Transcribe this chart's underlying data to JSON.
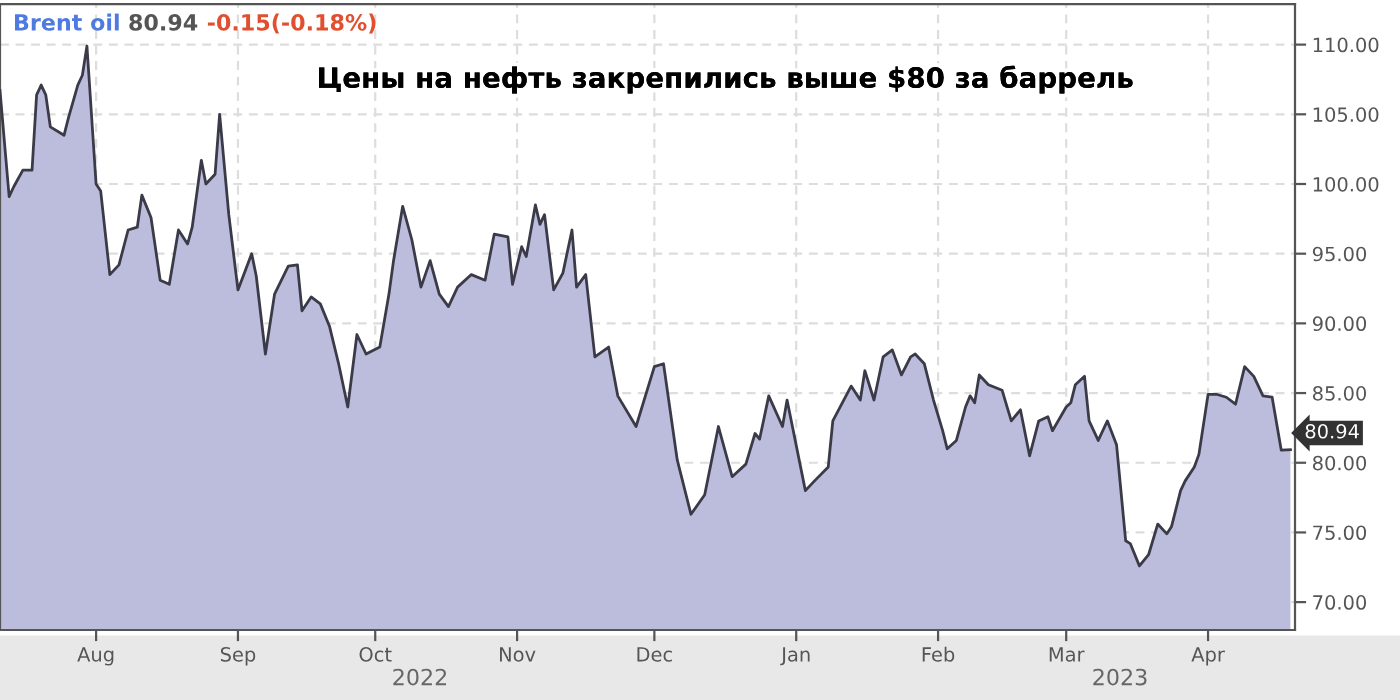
{
  "chart_data": {
    "type": "area",
    "title": "Цены на нефть закрепились выше $80 за баррель",
    "annotations": [
      "Brent oil",
      "80.94",
      "-0.15(-0.18%)",
      {
        "text": "80.94",
        "x": "2023-04-19",
        "y": 80.94
      },
      "2022",
      "2023"
    ],
    "x": [
      "2022-07-11",
      "2022-07-13",
      "2022-07-14",
      "2022-07-16",
      "2022-07-18",
      "2022-07-19",
      "2022-07-20",
      "2022-07-21",
      "2022-07-22",
      "2022-07-25",
      "2022-07-26",
      "2022-07-28",
      "2022-07-29",
      "2022-07-30",
      "2022-08-01",
      "2022-08-02",
      "2022-08-04",
      "2022-08-06",
      "2022-08-08",
      "2022-08-10",
      "2022-08-11",
      "2022-08-13",
      "2022-08-15",
      "2022-08-17",
      "2022-08-19",
      "2022-08-21",
      "2022-08-22",
      "2022-08-24",
      "2022-08-25",
      "2022-08-27",
      "2022-08-28",
      "2022-08-30",
      "2022-09-01",
      "2022-09-04",
      "2022-09-05",
      "2022-09-07",
      "2022-09-09",
      "2022-09-12",
      "2022-09-14",
      "2022-09-15",
      "2022-09-17",
      "2022-09-19",
      "2022-09-21",
      "2022-09-23",
      "2022-09-25",
      "2022-09-27",
      "2022-09-29",
      "2022-10-02",
      "2022-10-04",
      "2022-10-05",
      "2022-10-07",
      "2022-10-09",
      "2022-10-11",
      "2022-10-13",
      "2022-10-15",
      "2022-10-17",
      "2022-10-19",
      "2022-10-22",
      "2022-10-25",
      "2022-10-27",
      "2022-10-30",
      "2022-10-31",
      "2022-11-02",
      "2022-11-03",
      "2022-11-05",
      "2022-11-06",
      "2022-11-07",
      "2022-11-09",
      "2022-11-11",
      "2022-11-13",
      "2022-11-14",
      "2022-11-16",
      "2022-11-18",
      "2022-11-21",
      "2022-11-23",
      "2022-11-27",
      "2022-12-01",
      "2022-12-03",
      "2022-12-06",
      "2022-12-09",
      "2022-12-12",
      "2022-12-15",
      "2022-12-18",
      "2022-12-21",
      "2022-12-23",
      "2022-12-24",
      "2022-12-26",
      "2022-12-29",
      "2022-12-30",
      "2023-01-03",
      "2023-01-05",
      "2023-01-08",
      "2023-01-09",
      "2023-01-13",
      "2023-01-15",
      "2023-01-16",
      "2023-01-18",
      "2023-01-20",
      "2023-01-22",
      "2023-01-24",
      "2023-01-26",
      "2023-01-27",
      "2023-01-29",
      "2023-01-31",
      "2023-02-02",
      "2023-02-03",
      "2023-02-05",
      "2023-02-07",
      "2023-02-08",
      "2023-02-09",
      "2023-02-10",
      "2023-02-12",
      "2023-02-15",
      "2023-02-17",
      "2023-02-19",
      "2023-02-21",
      "2023-02-23",
      "2023-02-25",
      "2023-02-26",
      "2023-03-01",
      "2023-03-02",
      "2023-03-03",
      "2023-03-05",
      "2023-03-06",
      "2023-03-08",
      "2023-03-10",
      "2023-03-12",
      "2023-03-14",
      "2023-03-15",
      "2023-03-17",
      "2023-03-19",
      "2023-03-21",
      "2023-03-23",
      "2023-03-24",
      "2023-03-26",
      "2023-03-27",
      "2023-03-29",
      "2023-03-30",
      "2023-04-01",
      "2023-04-03",
      "2023-04-05",
      "2023-04-07",
      "2023-04-09",
      "2023-04-11",
      "2023-04-13",
      "2023-04-15",
      "2023-04-17",
      "2023-04-19"
    ],
    "series": [
      {
        "color": "#bcbcdc",
        "values": [
          106.7,
          99.1,
          99.8,
          101.0,
          101.0,
          106.4,
          107.1,
          106.4,
          104.1,
          103.5,
          104.8,
          107.1,
          107.8,
          109.9,
          100.0,
          99.5,
          93.5,
          94.2,
          96.7,
          96.9,
          99.2,
          97.6,
          93.1,
          92.8,
          96.7,
          95.7,
          96.9,
          101.7,
          100.0,
          100.7,
          105.0,
          97.8,
          92.4,
          95.0,
          93.4,
          87.8,
          92.1,
          94.1,
          94.2,
          90.9,
          91.9,
          91.4,
          89.8,
          87.1,
          84.0,
          89.2,
          87.8,
          88.3,
          92.1,
          94.5,
          98.4,
          96.0,
          92.6,
          94.5,
          92.1,
          91.2,
          92.6,
          93.5,
          93.1,
          96.4,
          96.2,
          92.8,
          95.5,
          94.8,
          98.5,
          97.1,
          97.8,
          92.4,
          93.6,
          96.7,
          92.6,
          93.5,
          87.6,
          88.3,
          84.8,
          82.6,
          86.9,
          87.1,
          80.2,
          76.3,
          77.7,
          82.6,
          79.0,
          79.9,
          82.1,
          81.7,
          84.8,
          82.6,
          84.5,
          78.0,
          78.7,
          79.7,
          83.0,
          85.5,
          84.5,
          86.6,
          84.5,
          87.6,
          88.1,
          86.3,
          87.6,
          87.8,
          87.1,
          84.5,
          82.3,
          81.0,
          81.6,
          84.0,
          84.8,
          84.3,
          86.3,
          85.6,
          85.2,
          83.0,
          83.8,
          80.5,
          83.0,
          83.3,
          82.3,
          84.0,
          84.3,
          85.6,
          86.2,
          83.0,
          81.6,
          83.0,
          81.3,
          74.4,
          74.2,
          72.6,
          73.4,
          75.6,
          74.9,
          75.4,
          78.0,
          78.7,
          79.7,
          80.6,
          84.9,
          84.9,
          84.7,
          84.2,
          86.9,
          86.2,
          84.8,
          84.7,
          80.9,
          80.94
        ]
      }
    ],
    "xlim": [
      "2022-07-11",
      "2023-04-20"
    ],
    "ylim": [
      68,
      112.9
    ],
    "yticks": [
      {
        "value": 70,
        "label": "70.00"
      },
      {
        "value": 75,
        "label": "75.00"
      },
      {
        "value": 80,
        "label": "80.00"
      },
      {
        "value": 85,
        "label": "85.00"
      },
      {
        "value": 90,
        "label": "90.00"
      },
      {
        "value": 95,
        "label": "95.00"
      },
      {
        "value": 100,
        "label": "100.00"
      },
      {
        "value": 105,
        "label": "105.00"
      },
      {
        "value": 110,
        "label": "110.00"
      }
    ],
    "xticks": [
      {
        "value": "2022-08-01",
        "label": "Aug"
      },
      {
        "value": "2022-09-01",
        "label": "Sep"
      },
      {
        "value": "2022-10-01",
        "label": "Oct"
      },
      {
        "value": "2022-11-01",
        "label": "Nov"
      },
      {
        "value": "2022-12-01",
        "label": "Dec"
      },
      {
        "value": "2023-01-01",
        "label": "Jan"
      },
      {
        "value": "2023-02-01",
        "label": "Feb"
      },
      {
        "value": "2023-03-01",
        "label": "Mar"
      },
      {
        "value": "2023-04-01",
        "label": "Apr"
      }
    ],
    "grid": true,
    "marker": "none",
    "line_style": "solid"
  }
}
